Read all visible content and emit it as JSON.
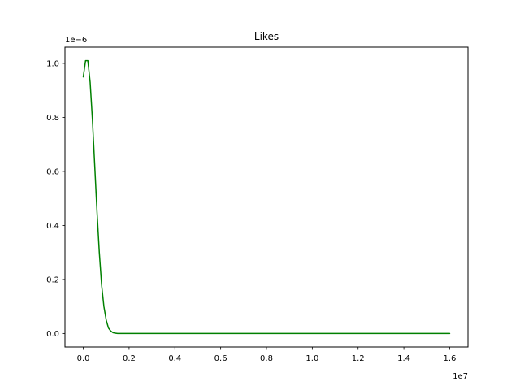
{
  "chart_data": {
    "type": "line",
    "title": "Likes",
    "xlabel": "",
    "ylabel": "",
    "x_offset_label": "1e7",
    "y_offset_label": "1e−6",
    "xlim": [
      -800000,
      16800000
    ],
    "ylim": [
      -5e-08,
      1.06e-06
    ],
    "x_ticks": [
      0,
      2000000,
      4000000,
      6000000,
      8000000,
      10000000,
      12000000,
      14000000,
      16000000
    ],
    "x_tick_labels": [
      "0.0",
      "0.2",
      "0.4",
      "0.6",
      "0.8",
      "1.0",
      "1.2",
      "1.4",
      "1.6"
    ],
    "y_ticks": [
      0,
      2e-07,
      4e-07,
      6e-07,
      8e-07,
      1e-06
    ],
    "y_tick_labels": [
      "0.0",
      "0.2",
      "0.4",
      "0.6",
      "0.8",
      "1.0"
    ],
    "grid": false,
    "series": [
      {
        "color": "#008000",
        "x": [
          0,
          100000,
          200000,
          300000,
          400000,
          500000,
          600000,
          700000,
          800000,
          900000,
          1000000,
          1100000,
          1200000,
          1300000,
          1400000,
          1500000,
          1600000,
          1800000,
          2000000,
          3000000,
          4000000,
          6000000,
          8000000,
          10000000,
          12000000,
          14000000,
          16000000
        ],
        "y": [
          9.5e-07,
          1.01e-06,
          1.01e-06,
          9.3e-07,
          7.9e-07,
          6.2e-07,
          4.5e-07,
          3e-07,
          1.8e-07,
          1e-07,
          5e-08,
          2e-08,
          9e-09,
          3e-09,
          1e-09,
          0,
          0,
          0,
          0,
          0,
          0,
          0,
          0,
          0,
          0,
          0,
          0
        ]
      }
    ]
  }
}
